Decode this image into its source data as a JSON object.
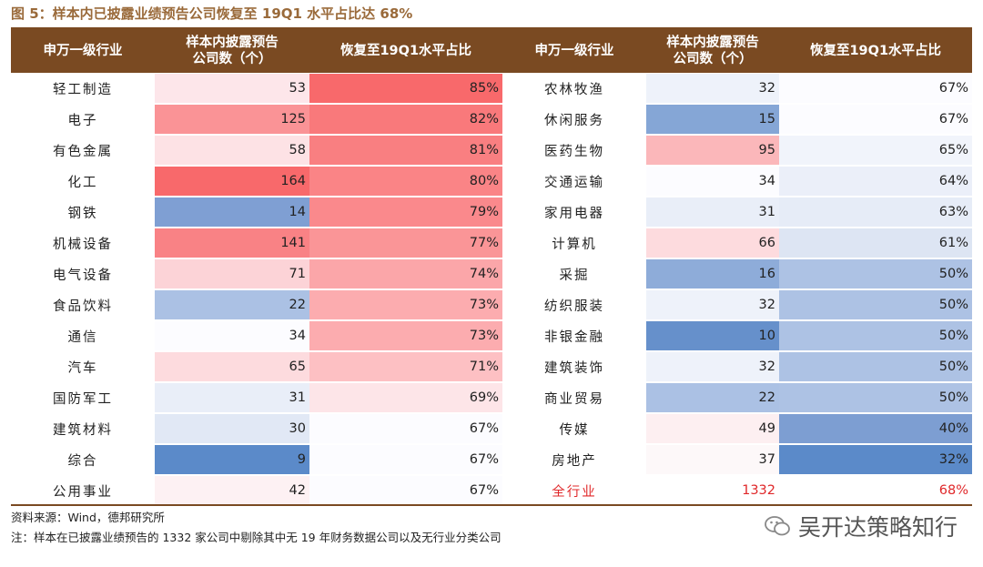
{
  "title": "图 5：样本内已披露业绩预告公司恢复至 19Q1 水平占比达 68%",
  "header": {
    "col_industry": "申万一级行业",
    "col_count": "样本内披露预告\n公司数（个）",
    "col_ratio": "恢复至19Q1水平占比"
  },
  "left_rows": [
    {
      "industry": "轻工制造",
      "count": "53",
      "ratio": "85%",
      "count_bg": "#fde6ea",
      "ratio_bg": "#f8696b"
    },
    {
      "industry": "电子",
      "count": "125",
      "ratio": "82%",
      "count_bg": "#fa9396",
      "ratio_bg": "#f9797b"
    },
    {
      "industry": "有色金属",
      "count": "58",
      "ratio": "81%",
      "count_bg": "#fde2e5",
      "ratio_bg": "#f97f81"
    },
    {
      "industry": "化工",
      "count": "164",
      "ratio": "80%",
      "count_bg": "#f8696b",
      "ratio_bg": "#fa8486"
    },
    {
      "industry": "钢铁",
      "count": "14",
      "ratio": "79%",
      "count_bg": "#7f9fd3",
      "ratio_bg": "#fa898c"
    },
    {
      "industry": "机械设备",
      "count": "141",
      "ratio": "77%",
      "count_bg": "#f98285",
      "ratio_bg": "#fa9597"
    },
    {
      "industry": "电气设备",
      "count": "71",
      "ratio": "74%",
      "count_bg": "#fcd3d7",
      "ratio_bg": "#fba6a9"
    },
    {
      "industry": "食品饮料",
      "count": "22",
      "ratio": "73%",
      "count_bg": "#abc1e4",
      "ratio_bg": "#fcacaf"
    },
    {
      "industry": "通信",
      "count": "34",
      "ratio": "73%",
      "count_bg": "#fcfcff",
      "ratio_bg": "#fcacaf"
    },
    {
      "industry": "汽车",
      "count": "65",
      "ratio": "71%",
      "count_bg": "#fddbde",
      "ratio_bg": "#fdc0c3"
    },
    {
      "industry": "国防军工",
      "count": "31",
      "ratio": "69%",
      "count_bg": "#e9eef8",
      "ratio_bg": "#fde5e8"
    },
    {
      "industry": "建筑材料",
      "count": "30",
      "ratio": "67%",
      "count_bg": "#e1e8f5",
      "ratio_bg": "#fcfcff"
    },
    {
      "industry": "综合",
      "count": "9",
      "ratio": "67%",
      "count_bg": "#5b8ac9",
      "ratio_bg": "#fcfcff"
    },
    {
      "industry": "公用事业",
      "count": "42",
      "ratio": "67%",
      "count_bg": "#fdf1f3",
      "ratio_bg": "#fcfcff"
    }
  ],
  "right_rows": [
    {
      "industry": "农林牧渔",
      "count": "32",
      "ratio": "67%",
      "count_bg": "#eef2fa",
      "ratio_bg": "#fcfcff",
      "highlight": false
    },
    {
      "industry": "休闲服务",
      "count": "15",
      "ratio": "67%",
      "count_bg": "#85a6d6",
      "ratio_bg": "#fcfcff",
      "highlight": false
    },
    {
      "industry": "医药生物",
      "count": "95",
      "ratio": "65%",
      "count_bg": "#fbb7ba",
      "ratio_bg": "#f1f4fb",
      "highlight": false
    },
    {
      "industry": "交通运输",
      "count": "34",
      "ratio": "64%",
      "count_bg": "#fcfcff",
      "ratio_bg": "#ebeff9",
      "highlight": false
    },
    {
      "industry": "家用电器",
      "count": "31",
      "ratio": "63%",
      "count_bg": "#e9eef8",
      "ratio_bg": "#e6ecf7",
      "highlight": false
    },
    {
      "industry": "计算机",
      "count": "66",
      "ratio": "61%",
      "count_bg": "#fddbde",
      "ratio_bg": "#dde5f3",
      "highlight": false
    },
    {
      "industry": "采掘",
      "count": "16",
      "ratio": "50%",
      "count_bg": "#8eacd9",
      "ratio_bg": "#adc2e4",
      "highlight": false
    },
    {
      "industry": "纺织服装",
      "count": "32",
      "ratio": "50%",
      "count_bg": "#eef2fa",
      "ratio_bg": "#adc2e4",
      "highlight": false
    },
    {
      "industry": "非银金融",
      "count": "10",
      "ratio": "50%",
      "count_bg": "#6690cb",
      "ratio_bg": "#adc2e4",
      "highlight": false
    },
    {
      "industry": "建筑装饰",
      "count": "32",
      "ratio": "50%",
      "count_bg": "#eef2fa",
      "ratio_bg": "#adc2e4",
      "highlight": false
    },
    {
      "industry": "商业贸易",
      "count": "22",
      "ratio": "50%",
      "count_bg": "#abc1e4",
      "ratio_bg": "#adc2e4",
      "highlight": false
    },
    {
      "industry": "传媒",
      "count": "49",
      "ratio": "40%",
      "count_bg": "#fdeff1",
      "ratio_bg": "#7d9ed2",
      "highlight": false
    },
    {
      "industry": "房地产",
      "count": "37",
      "ratio": "32%",
      "count_bg": "#fdf8f9",
      "ratio_bg": "#5b8ac9",
      "highlight": false
    },
    {
      "industry": "全行业",
      "count": "1332",
      "ratio": "68%",
      "count_bg": "#ffffff",
      "ratio_bg": "#ffffff",
      "highlight": true
    }
  ],
  "footer": {
    "source": "资料来源：Wind，德邦研究所",
    "note": "注：样本在已披露业绩预告的 1332 家公司中剔除其中无 19 年财务数据公司以及无行业分类公司"
  },
  "watermark": {
    "text": "吴开达策略知行",
    "icon": "wechat-icon"
  },
  "colors": {
    "header_bg": "#7a4a22",
    "title": "#9a6a3a",
    "highlight_text": "#e0282a"
  }
}
